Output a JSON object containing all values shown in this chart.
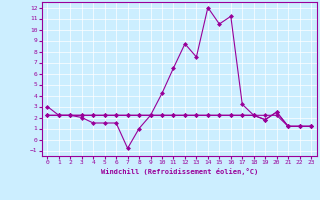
{
  "xlabel": "Windchill (Refroidissement éolien,°C)",
  "background_color": "#cceeff",
  "line_color": "#990099",
  "xlim": [
    -0.5,
    23.5
  ],
  "ylim": [
    -1.5,
    12.5
  ],
  "xticks": [
    0,
    1,
    2,
    3,
    4,
    5,
    6,
    7,
    8,
    9,
    10,
    11,
    12,
    13,
    14,
    15,
    16,
    17,
    18,
    19,
    20,
    21,
    22,
    23
  ],
  "yticks": [
    -1,
    0,
    1,
    2,
    3,
    4,
    5,
    6,
    7,
    8,
    9,
    10,
    11,
    12
  ],
  "series1_x": [
    0,
    1,
    2,
    3,
    4,
    5,
    6,
    7,
    8,
    9,
    10,
    11,
    12,
    13,
    14,
    15,
    16,
    17,
    18,
    19,
    20,
    21,
    22,
    23
  ],
  "series1_y": [
    3.0,
    2.2,
    2.2,
    2.0,
    1.5,
    1.5,
    1.5,
    -0.8,
    1.0,
    2.2,
    4.2,
    6.5,
    8.7,
    7.5,
    12.0,
    10.5,
    11.2,
    3.2,
    2.2,
    1.8,
    2.5,
    1.2,
    1.2,
    1.2
  ],
  "series2_x": [
    0,
    1,
    2,
    3,
    4,
    5,
    6,
    7,
    8,
    9,
    10,
    11,
    12,
    13,
    14,
    15,
    16,
    17,
    18,
    19,
    20,
    21,
    22,
    23
  ],
  "series2_y": [
    2.2,
    2.2,
    2.2,
    2.2,
    2.2,
    2.2,
    2.2,
    2.2,
    2.2,
    2.2,
    2.2,
    2.2,
    2.2,
    2.2,
    2.2,
    2.2,
    2.2,
    2.2,
    2.2,
    1.8,
    2.5,
    1.2,
    1.2,
    1.2
  ],
  "series3_x": [
    0,
    1,
    2,
    3,
    4,
    5,
    6,
    7,
    8,
    9,
    10,
    11,
    12,
    13,
    14,
    15,
    16,
    17,
    18,
    19,
    20,
    21,
    22,
    23
  ],
  "series3_y": [
    2.2,
    2.2,
    2.2,
    2.2,
    2.2,
    2.2,
    2.2,
    2.2,
    2.2,
    2.2,
    2.2,
    2.2,
    2.2,
    2.2,
    2.2,
    2.2,
    2.2,
    2.2,
    2.2,
    2.2,
    2.2,
    1.2,
    1.2,
    1.2
  ]
}
